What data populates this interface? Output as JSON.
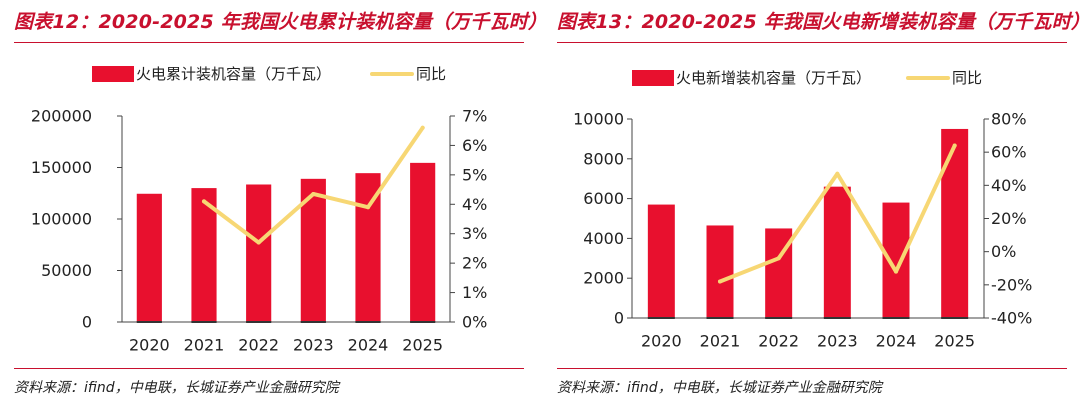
{
  "colors": {
    "bar": "#e8102e",
    "line": "#f7d774",
    "title": "#c8102e",
    "axis": "#222222"
  },
  "chart_data": [
    {
      "type": "bar",
      "title": "图表12：2020-2025 年我国火电累计装机容量（万千瓦时）",
      "source": "资料来源：ifind，中电联，长城证券产业金融研究院",
      "categories": [
        "2020",
        "2021",
        "2022",
        "2023",
        "2024",
        "2025"
      ],
      "series": [
        {
          "name": "火电累计装机容量（万千瓦）",
          "kind": "bar",
          "axis": "left",
          "values": [
            124500,
            130000,
            133500,
            139000,
            144500,
            154500
          ]
        },
        {
          "name": "同比",
          "kind": "line",
          "axis": "right",
          "values": [
            null,
            4.1,
            2.7,
            4.35,
            3.9,
            6.6
          ]
        }
      ],
      "yleft": {
        "min": 0,
        "max": 200000,
        "step": 50000,
        "ticks": [
          "0",
          "50000",
          "100000",
          "150000",
          "200000"
        ]
      },
      "yright": {
        "min": 0,
        "max": 7,
        "step": 1,
        "ticks": [
          "0%",
          "1%",
          "2%",
          "3%",
          "4%",
          "5%",
          "6%",
          "7%"
        ]
      }
    },
    {
      "type": "bar",
      "title": "图表13：2020-2025 年我国火电新增装机容量（万千瓦时）",
      "source": "资料来源：ifind，中电联，长城证券产业金融研究院",
      "categories": [
        "2020",
        "2021",
        "2022",
        "2023",
        "2024",
        "2025"
      ],
      "series": [
        {
          "name": "火电新增装机容量（万千瓦）",
          "kind": "bar",
          "axis": "left",
          "values": [
            5700,
            4650,
            4500,
            6600,
            5800,
            9500
          ]
        },
        {
          "name": "同比",
          "kind": "line",
          "axis": "right",
          "values": [
            null,
            -18,
            -4,
            47,
            -12,
            64
          ]
        }
      ],
      "yleft": {
        "min": 0,
        "max": 10000,
        "step": 2000,
        "ticks": [
          "0",
          "2000",
          "4000",
          "6000",
          "8000",
          "10000"
        ]
      },
      "yright": {
        "min": -40,
        "max": 80,
        "step": 20,
        "ticks": [
          "-40%",
          "-20%",
          "0%",
          "20%",
          "40%",
          "60%",
          "80%"
        ]
      }
    }
  ]
}
